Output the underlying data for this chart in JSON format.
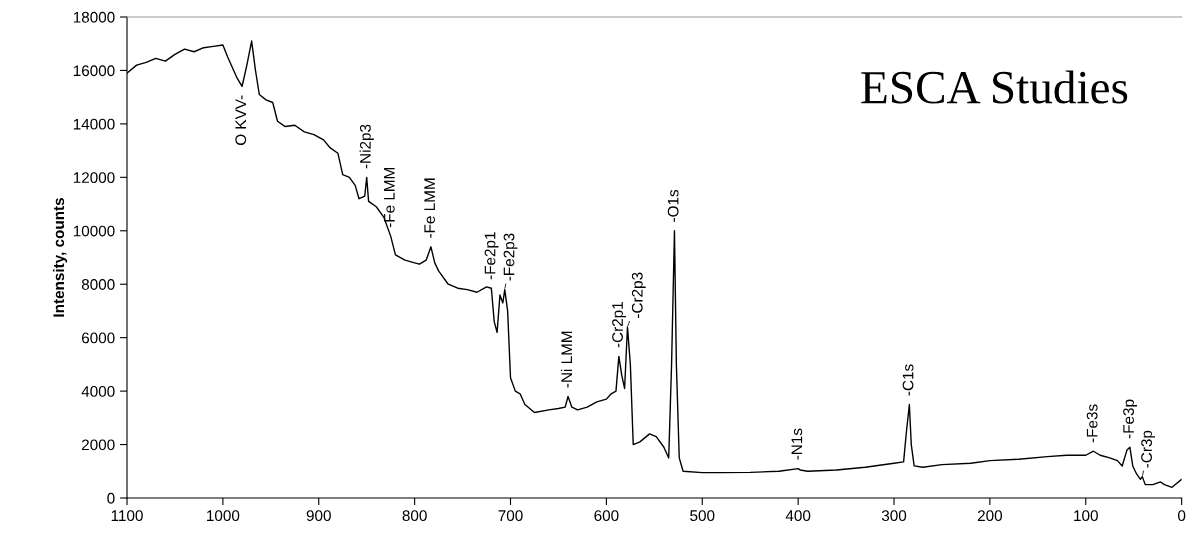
{
  "chart_data": {
    "type": "line",
    "title": "ESCA Studies",
    "ylabel": "Intensity, counts",
    "xlim": [
      1100,
      0
    ],
    "xticks": [
      1100,
      1000,
      900,
      800,
      700,
      600,
      500,
      400,
      300,
      200,
      100,
      0
    ],
    "ylim": [
      0,
      18000
    ],
    "yticks": [
      0,
      2000,
      4000,
      6000,
      8000,
      10000,
      12000,
      14000,
      16000,
      18000
    ],
    "grid": false,
    "legend": false,
    "marker": "none",
    "line_style": "solid",
    "series": [
      {
        "color": "#000000",
        "x": [
          1100,
          1090,
          1080,
          1070,
          1060,
          1050,
          1040,
          1030,
          1020,
          1010,
          1000,
          995,
          985,
          980,
          975,
          970,
          966,
          962,
          955,
          948,
          943,
          935,
          925,
          915,
          905,
          895,
          888,
          880,
          875,
          868,
          862,
          858,
          852,
          850,
          848,
          840,
          832,
          825,
          820,
          810,
          800,
          795,
          788,
          783,
          779,
          775,
          765,
          755,
          745,
          735,
          725,
          720,
          717,
          714,
          711,
          708,
          706,
          703,
          700,
          695,
          690,
          685,
          675,
          660,
          650,
          643,
          640,
          636,
          630,
          620,
          610,
          600,
          595,
          590,
          587,
          584,
          581,
          578,
          575,
          572,
          565,
          555,
          548,
          540,
          535,
          532,
          529,
          527,
          524,
          520,
          500,
          480,
          450,
          420,
          400,
          398,
          390,
          360,
          330,
          300,
          290,
          287,
          284,
          282,
          279,
          270,
          250,
          220,
          200,
          170,
          140,
          120,
          100,
          92,
          85,
          75,
          67,
          62,
          57,
          54,
          51,
          47,
          43,
          41,
          38,
          30,
          22,
          18,
          10,
          5,
          0
        ],
        "values": [
          15900,
          16200,
          16300,
          16450,
          16350,
          16600,
          16800,
          16700,
          16850,
          16900,
          16950,
          16500,
          15700,
          15400,
          16200,
          17100,
          16000,
          15100,
          14900,
          14800,
          14100,
          13900,
          13950,
          13700,
          13600,
          13400,
          13100,
          12900,
          12100,
          12000,
          11700,
          11200,
          11300,
          12000,
          11100,
          10900,
          10500,
          9800,
          9100,
          8900,
          8800,
          8750,
          8900,
          9400,
          8800,
          8500,
          8000,
          7850,
          7800,
          7700,
          7900,
          7850,
          6600,
          6200,
          7600,
          7300,
          7800,
          7000,
          4500,
          4000,
          3900,
          3500,
          3200,
          3300,
          3350,
          3400,
          3800,
          3400,
          3300,
          3400,
          3600,
          3700,
          3900,
          4000,
          5300,
          4600,
          4100,
          6400,
          5000,
          2000,
          2100,
          2400,
          2300,
          1900,
          1500,
          5000,
          10000,
          5000,
          1500,
          1000,
          950,
          950,
          960,
          1000,
          1100,
          1050,
          1000,
          1050,
          1150,
          1300,
          1350,
          2500,
          3500,
          2000,
          1200,
          1150,
          1250,
          1300,
          1400,
          1450,
          1550,
          1600,
          1600,
          1750,
          1600,
          1500,
          1400,
          1200,
          1800,
          1900,
          1200,
          900,
          700,
          800,
          500,
          500,
          600,
          500,
          400,
          550,
          700
        ]
      }
    ],
    "annotations": [
      {
        "text": "O KVV-",
        "x": 980,
        "y": 15400
      },
      {
        "text": "-Ni2p3",
        "x": 850,
        "y": 12000
      },
      {
        "text": "-Fe LMM",
        "x": 825,
        "y": 9800
      },
      {
        "text": "-Fe LMM",
        "x": 783,
        "y": 9400
      },
      {
        "text": "-Fe2p1",
        "x": 720,
        "y": 7850
      },
      {
        "text": "-Fe2p3",
        "x": 706,
        "y": 7800
      },
      {
        "text": "-Ni LMM",
        "x": 640,
        "y": 3800
      },
      {
        "text": "-Cr2p1",
        "x": 587,
        "y": 5300
      },
      {
        "text": "-Cr2p3",
        "x": 578,
        "y": 6400
      },
      {
        "text": "-O1s",
        "x": 529,
        "y": 10000
      },
      {
        "text": "-N1s",
        "x": 400,
        "y": 1100
      },
      {
        "text": "-C1s",
        "x": 284,
        "y": 3500
      },
      {
        "text": "-Fe3s",
        "x": 92,
        "y": 1750
      },
      {
        "text": "-Fe3p",
        "x": 54,
        "y": 1900
      },
      {
        "text": "-Cr3p",
        "x": 41,
        "y": 800
      }
    ]
  }
}
